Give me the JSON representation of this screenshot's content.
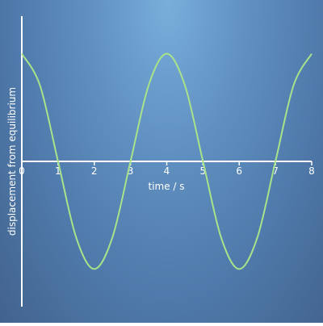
{
  "chart_data": {
    "type": "line",
    "title": "",
    "xlabel": "time / s",
    "ylabel": "displacement from equilibrium",
    "xlim": [
      0,
      8
    ],
    "ylim": [
      -1.35,
      1.35
    ],
    "x_ticks": [
      "0",
      "1",
      "2",
      "3",
      "4",
      "5",
      "6",
      "7",
      "8"
    ],
    "y_ticks": [],
    "grid": false,
    "series": [
      {
        "x": [
          0,
          0.5,
          1,
          1.5,
          2,
          2.5,
          3,
          3.5,
          4,
          4.5,
          5,
          5.5,
          6,
          6.5,
          7,
          7.5,
          8
        ],
        "y": [
          1,
          0.707,
          0,
          -0.707,
          -1,
          -0.707,
          0,
          0.707,
          1,
          0.707,
          0,
          -0.707,
          -1,
          -0.707,
          0,
          0.707,
          1
        ],
        "color": "#a8e28a"
      }
    ],
    "axis_color": "#ffffff"
  }
}
